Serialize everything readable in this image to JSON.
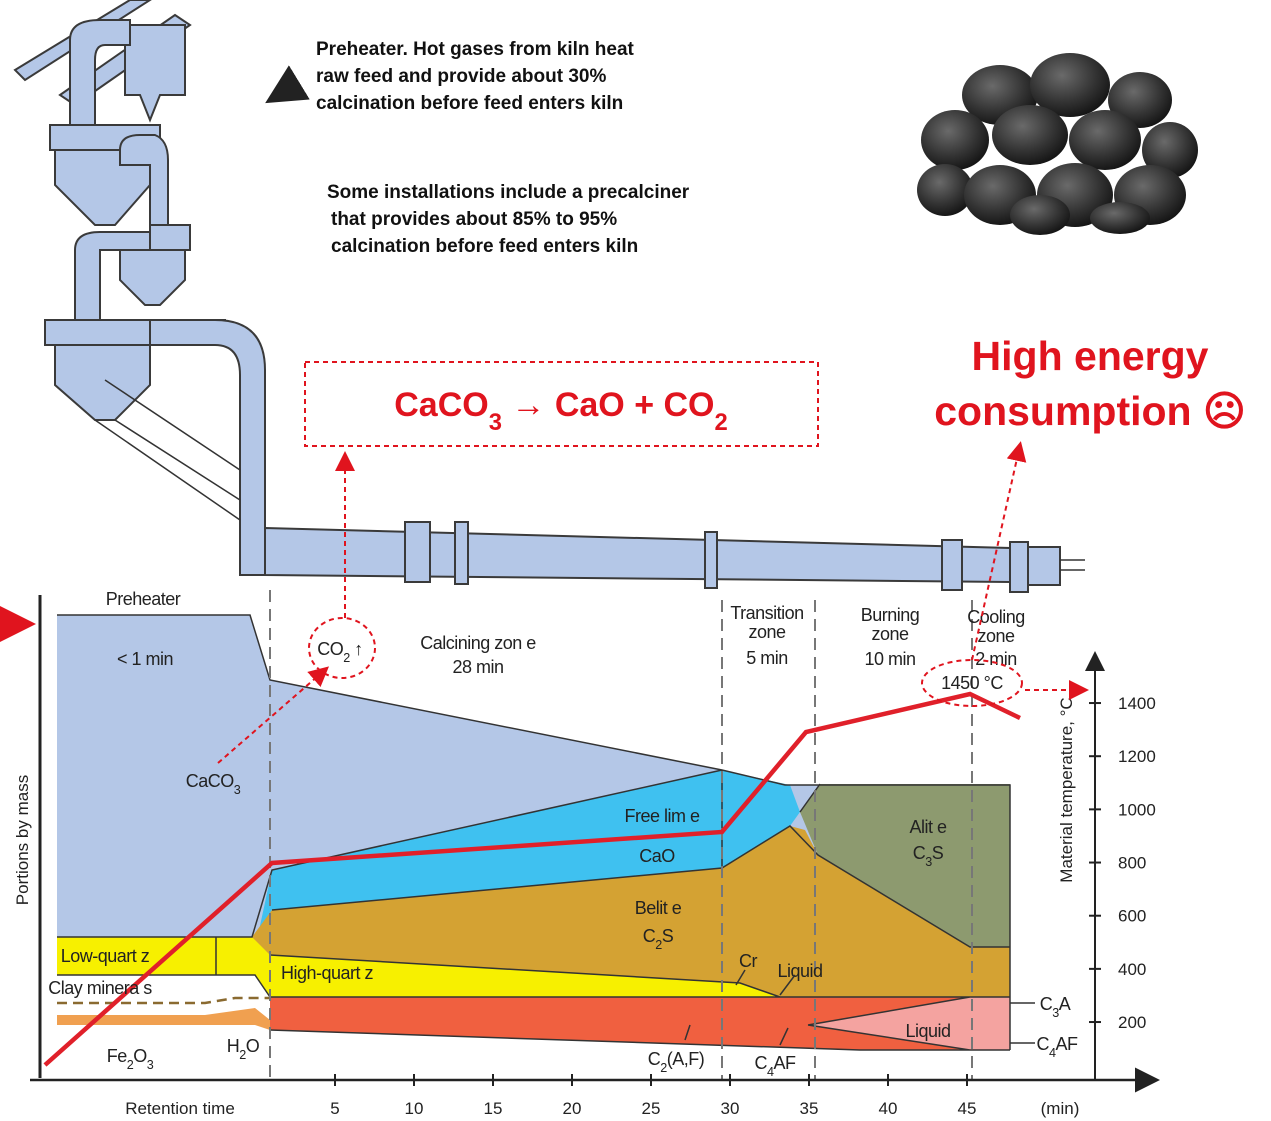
{
  "preheater_note": [
    "Preheater. Hot gases from kiln heat",
    "raw feed and provide about 30%",
    "calcination before feed enters kiln"
  ],
  "precalciner_note": [
    "Some installations include a precalciner",
    "that provides about 85% to 95%",
    "calcination before feed enters kiln"
  ],
  "reaction": [
    "CaCO",
    "3",
    " →  CaO + CO",
    "2"
  ],
  "energy_note": [
    "High energy",
    "consumption ☹"
  ],
  "diagram": {
    "y_axis_label": "Portions by mass",
    "x_axis_label": "Retention time",
    "x_unit": "(min)",
    "xticks": [
      5,
      10,
      15,
      20,
      25,
      30,
      35,
      40,
      45
    ],
    "y2_axis_label": "Material temperature, °C",
    "y2ticks": [
      200,
      400,
      600,
      800,
      1000,
      1200,
      1400
    ],
    "zones": {
      "preheater": [
        "Preheater",
        "< 1 min"
      ],
      "calcining": [
        "Calcining zon e",
        "28 min"
      ],
      "transition": [
        "Transition",
        "zone",
        "5 min"
      ],
      "burning": [
        "Burning",
        "zone",
        "10 min"
      ],
      "cooling": [
        "Cooling",
        "zone",
        "2 min"
      ]
    },
    "peak_temperature": "1450 °C",
    "labels": {
      "co2": [
        "CO",
        "2",
        " ↑"
      ],
      "caco3": [
        "CaCO",
        "3"
      ],
      "free_lime": [
        "Free lim e"
      ],
      "cao": [
        "CaO"
      ],
      "alite": [
        "Alit e"
      ],
      "c3s": [
        "C",
        "3",
        "S"
      ],
      "belite": [
        "Belit e"
      ],
      "c2s": [
        "C",
        "2",
        "S"
      ],
      "low_quartz": [
        "Low-quart z"
      ],
      "high_quartz": [
        "High-quart z"
      ],
      "clay": [
        "Clay minera s"
      ],
      "fe2o3": [
        "Fe",
        "2",
        "O",
        "3"
      ],
      "h2o": [
        "H",
        "2",
        "O"
      ],
      "cr": [
        "Cr"
      ],
      "liquid_1": [
        "Liquid"
      ],
      "liquid_2": [
        "Liquid"
      ],
      "c3a": [
        "C",
        "3",
        "A"
      ],
      "c4af_right": [
        "C",
        "4",
        "AF"
      ],
      "c2af": [
        "C",
        "2",
        "(A,F)"
      ],
      "c4af": [
        "C",
        "4",
        "AF"
      ]
    }
  }
}
